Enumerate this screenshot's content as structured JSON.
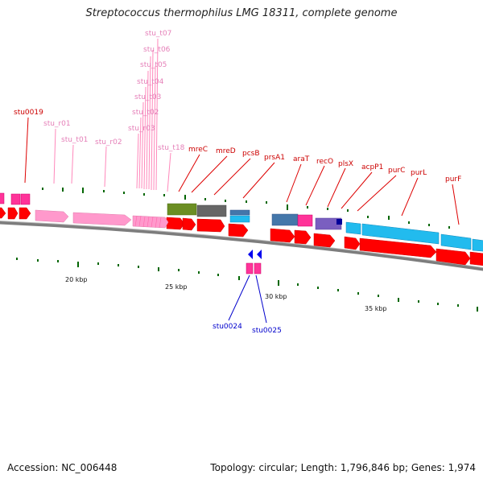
{
  "title": "Streptococcus thermophilus LMG 18311, complete genome",
  "footer": {
    "accession": "Accession: NC_006448",
    "summary": "Topology: circular; Length: 1,796,846 bp; Genes: 1,974"
  },
  "colors": {
    "backbone": "#8a8a8a",
    "cds": "#ff0000",
    "rrna": "#ff99cc",
    "trna_label": "#e57fb8",
    "magenta": "#ff3399",
    "green_cog": "#6b8e23",
    "gray_cog": "#666666",
    "cyan_cog": "#22bbee",
    "purple_cog": "#7a5fc0",
    "reverse_strand": "#0000ee",
    "gc_tick": "#006600"
  },
  "scale_labels": [
    "20 kbp",
    "25 kbp",
    "30 kbp",
    "35 kbp"
  ],
  "gene_labels": {
    "stu0019": "stu0019",
    "stu_r01": "stu_r01",
    "stu_t01": "stu_t01",
    "stu_r02": "stu_r02",
    "stu_r03": "stu_r03",
    "stu_t02": "stu_t02",
    "stu_t03": "stu_t03",
    "stu_t04": "stu_t04",
    "stu_t05": "stu_t05",
    "stu_t06": "stu_t06",
    "stu_t07": "stu_t07",
    "stu_t18": "stu_t18",
    "mreC": "mreC",
    "mreD": "mreD",
    "pcsB": "pcsB",
    "prsA1": "prsA1",
    "araT": "araT",
    "recO": "recO",
    "plsX": "plsX",
    "acpP1": "acpP1",
    "purC": "purC",
    "purL": "purL",
    "purF": "purF",
    "stu0024": "stu0024",
    "stu0025": "stu0025"
  }
}
